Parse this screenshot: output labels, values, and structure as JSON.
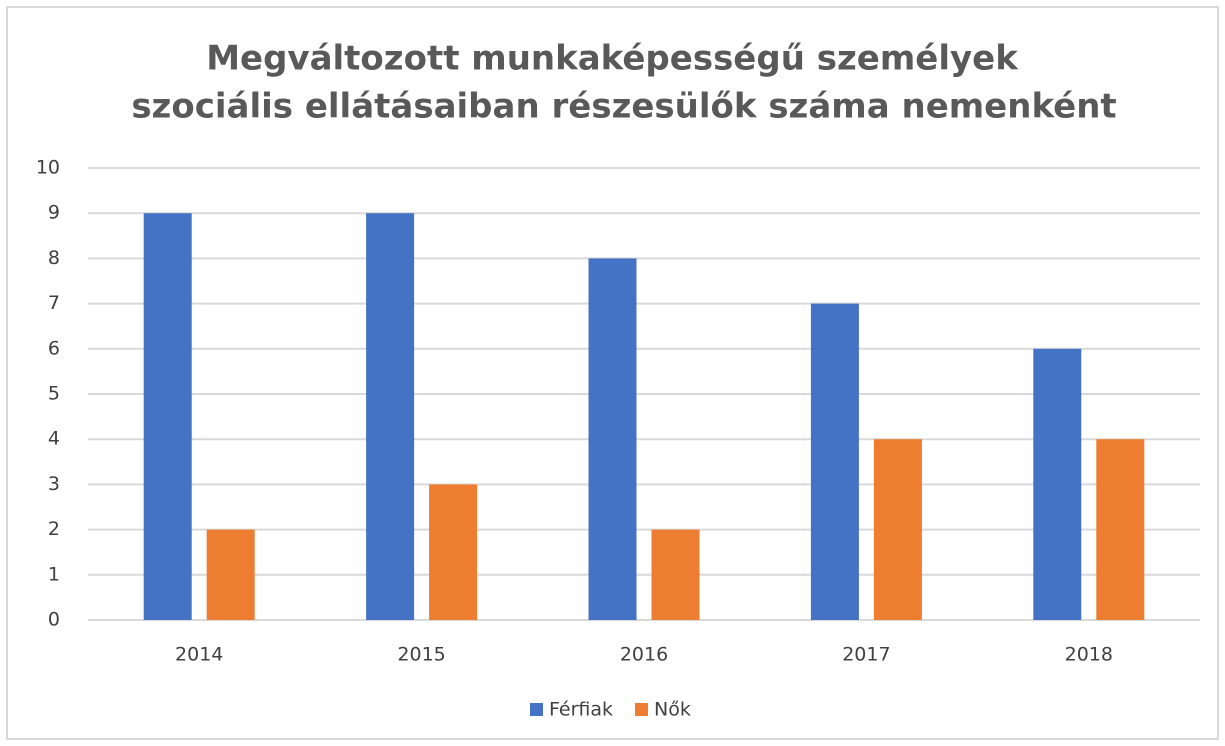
{
  "chart_data": {
    "type": "bar",
    "title": [
      "Megváltozott munkaképességű személyek",
      "szociális ellátásaiban részesülők száma nemenként"
    ],
    "categories": [
      "2014",
      "2015",
      "2016",
      "2017",
      "2018"
    ],
    "series": [
      {
        "name": "Férfiak",
        "color": "#4472c4",
        "values": [
          9,
          9,
          8,
          7,
          6
        ]
      },
      {
        "name": "Nők",
        "color": "#ed7d31",
        "values": [
          2,
          3,
          2,
          4,
          4
        ]
      }
    ],
    "ylim": [
      0,
      10
    ],
    "yticks": [
      0,
      1,
      2,
      3,
      4,
      5,
      6,
      7,
      8,
      9,
      10
    ],
    "grid": true,
    "legend": "bottom"
  }
}
